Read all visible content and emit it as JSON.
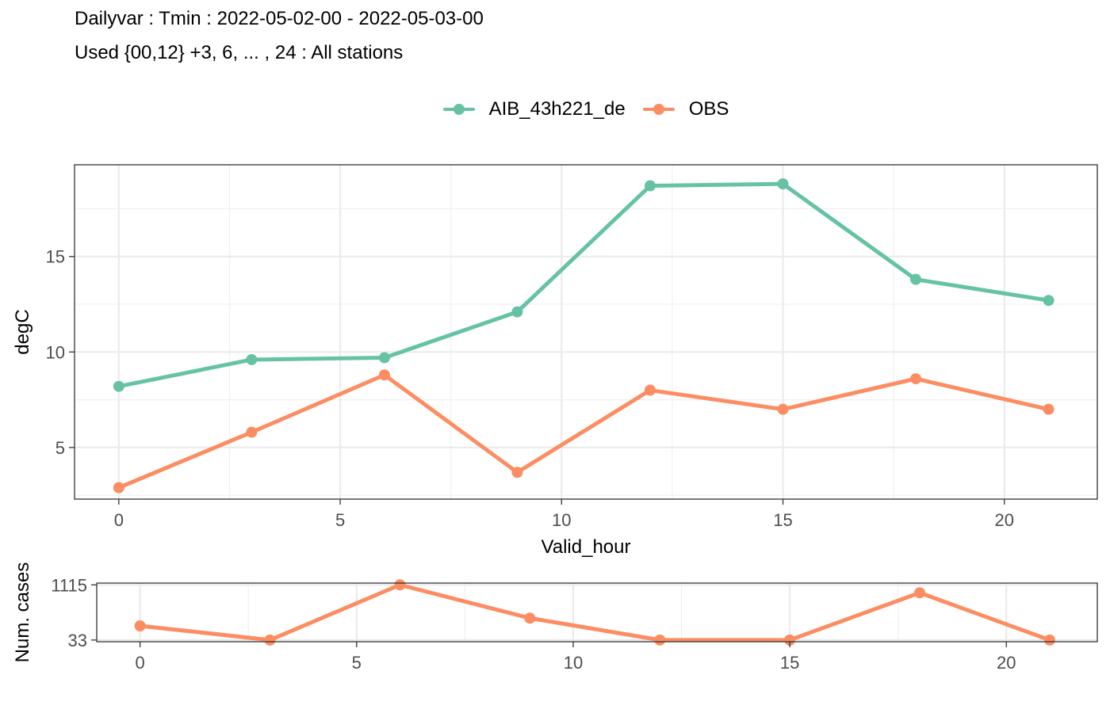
{
  "titles": {
    "line1": "Dailyvar : Tmin : 2022-05-02-00 - 2022-05-03-00",
    "line2": "Used {00,12} +3, 6, ... , 24 : All stations"
  },
  "legend": {
    "placement": "top",
    "items": [
      {
        "label": "AIB_43h221_de",
        "color": "#66c2a5"
      },
      {
        "label": "OBS",
        "color": "#fc8d62"
      }
    ]
  },
  "chart_data": [
    {
      "type": "line",
      "xlabel": "Valid_hour",
      "ylabel": "degC",
      "xlim": [
        -1,
        22.1
      ],
      "ylim": [
        2.3,
        19.8
      ],
      "x_ticks": [
        0,
        5,
        10,
        15,
        20
      ],
      "y_ticks": [
        5,
        10,
        15
      ],
      "grid": true,
      "x": [
        0,
        3,
        6,
        9,
        12,
        15,
        18,
        21
      ],
      "series": [
        {
          "name": "AIB_43h221_de",
          "color": "#66c2a5",
          "values": [
            8.2,
            9.6,
            9.7,
            12.1,
            18.7,
            18.8,
            13.8,
            12.7
          ]
        },
        {
          "name": "OBS",
          "color": "#fc8d62",
          "values": [
            2.9,
            5.8,
            8.8,
            3.7,
            8.0,
            7.0,
            8.6,
            7.0
          ]
        }
      ]
    },
    {
      "type": "line",
      "xlabel": "",
      "ylabel": "Num. cases",
      "xlim": [
        -1,
        22.1
      ],
      "ylim": [
        0,
        1150
      ],
      "x_ticks": [
        0,
        5,
        10,
        15,
        20
      ],
      "y_ticks": [
        33,
        1115
      ],
      "grid": true,
      "x": [
        0,
        3,
        6,
        9,
        12,
        15,
        18,
        21
      ],
      "series": [
        {
          "name": "OBS",
          "color": "#fc8d62",
          "values": [
            311,
            33,
            1115,
            462,
            33,
            33,
            960,
            33
          ]
        }
      ]
    }
  ]
}
